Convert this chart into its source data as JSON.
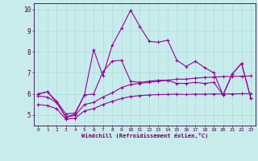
{
  "x": [
    0,
    1,
    2,
    3,
    4,
    5,
    6,
    7,
    8,
    9,
    10,
    11,
    12,
    13,
    14,
    15,
    16,
    17,
    18,
    19,
    20,
    21,
    22,
    23
  ],
  "line1": [
    6.0,
    6.1,
    5.6,
    4.9,
    5.05,
    5.95,
    8.1,
    6.85,
    8.3,
    9.1,
    9.97,
    9.2,
    8.5,
    8.45,
    8.55,
    7.6,
    7.3,
    7.55,
    7.25,
    7.0,
    5.95,
    6.95,
    7.45,
    5.8
  ],
  "line2": [
    6.0,
    6.1,
    5.65,
    5.05,
    5.1,
    5.95,
    6.0,
    7.05,
    7.55,
    7.6,
    6.6,
    6.55,
    6.6,
    6.65,
    6.65,
    6.5,
    6.5,
    6.55,
    6.5,
    6.55,
    5.95,
    6.95,
    7.45,
    5.8
  ],
  "line3": [
    5.9,
    5.85,
    5.6,
    4.9,
    4.98,
    5.5,
    5.6,
    5.85,
    6.05,
    6.3,
    6.45,
    6.5,
    6.55,
    6.6,
    6.65,
    6.7,
    6.7,
    6.75,
    6.78,
    6.8,
    6.82,
    6.83,
    6.84,
    6.85
  ],
  "line4": [
    5.5,
    5.45,
    5.3,
    4.8,
    4.85,
    5.2,
    5.3,
    5.5,
    5.65,
    5.78,
    5.88,
    5.92,
    5.95,
    5.97,
    5.98,
    5.99,
    5.97,
    5.99,
    5.99,
    6.0,
    6.0,
    6.0,
    6.01,
    6.01
  ],
  "line_color": "#990099",
  "bg_color": "#c8ecec",
  "grid_color": "#b0d8d8",
  "ylabel_ticks": [
    5,
    6,
    7,
    8,
    9,
    10
  ],
  "xlabel": "Windchill (Refroidissement éolien,°C)",
  "ylim": [
    4.5,
    10.3
  ],
  "xlim": [
    -0.5,
    23.5
  ]
}
